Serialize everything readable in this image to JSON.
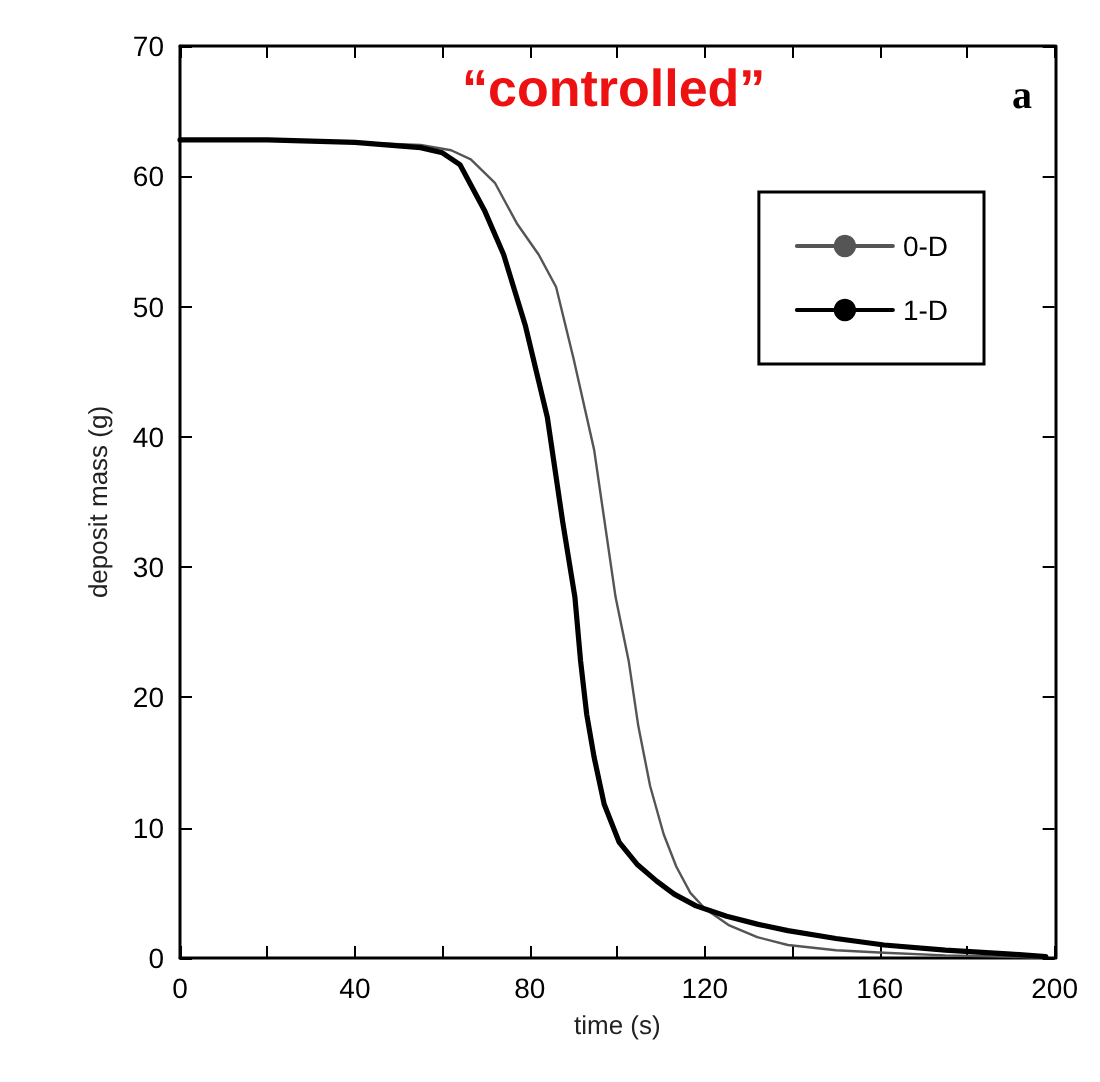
{
  "chart_data": {
    "type": "line",
    "title": "“controlled”",
    "annotations": [
      "a"
    ],
    "xlabel": "time (s)",
    "ylabel": "deposit mass (g)",
    "xlim": [
      0,
      200
    ],
    "ylim": [
      0,
      70
    ],
    "xticks": [
      0,
      {
        "value": 20,
        "label": null
      },
      40,
      {
        "value": 60,
        "label": null
      },
      80,
      {
        "value": 100,
        "label": null
      },
      120,
      {
        "value": 140,
        "label": null
      },
      160,
      {
        "value": 180,
        "label": null
      },
      200
    ],
    "yticks": [
      0,
      10,
      20,
      30,
      40,
      50,
      60,
      70
    ],
    "grid": false,
    "legend": "top right",
    "marker": "none",
    "line_style": "solid",
    "series": [
      {
        "name": "0-D",
        "color": "#555555",
        "x": [
          0,
          20,
          40,
          55,
          62,
          66.5,
          72,
          77,
          82,
          86,
          90,
          94.7,
          99.6,
          102.6,
          104.8,
          107.5,
          110.6,
          113.5,
          116.7,
          120,
          125.6,
          132,
          139,
          150,
          161,
          175,
          190,
          198
        ],
        "values": [
          62.8,
          62.8,
          62.6,
          62.4,
          62,
          61.3,
          59.5,
          56.4,
          54,
          51.5,
          46,
          39,
          27.7,
          22.8,
          17.8,
          13.2,
          9.5,
          7,
          5,
          3.8,
          2.5,
          1.6,
          1,
          0.6,
          0.4,
          0.2,
          0.1,
          0
        ]
      },
      {
        "name": "1-D",
        "color": "#000000",
        "x": [
          0,
          20,
          40,
          55,
          60,
          64,
          69.6,
          74,
          79,
          84,
          87.5,
          90.3,
          91.6,
          93,
          94.7,
          97,
          100.4,
          104.5,
          109,
          113,
          118,
          125,
          132,
          139,
          150,
          161,
          175,
          190,
          198
        ],
        "values": [
          62.8,
          62.8,
          62.6,
          62.2,
          61.8,
          60.9,
          57.4,
          54,
          48.5,
          41.5,
          33.5,
          27.7,
          22.8,
          18.7,
          15.4,
          11.8,
          8.9,
          7.2,
          5.9,
          4.9,
          4,
          3.2,
          2.6,
          2.1,
          1.5,
          1,
          0.6,
          0.3,
          0.1
        ]
      }
    ]
  }
}
